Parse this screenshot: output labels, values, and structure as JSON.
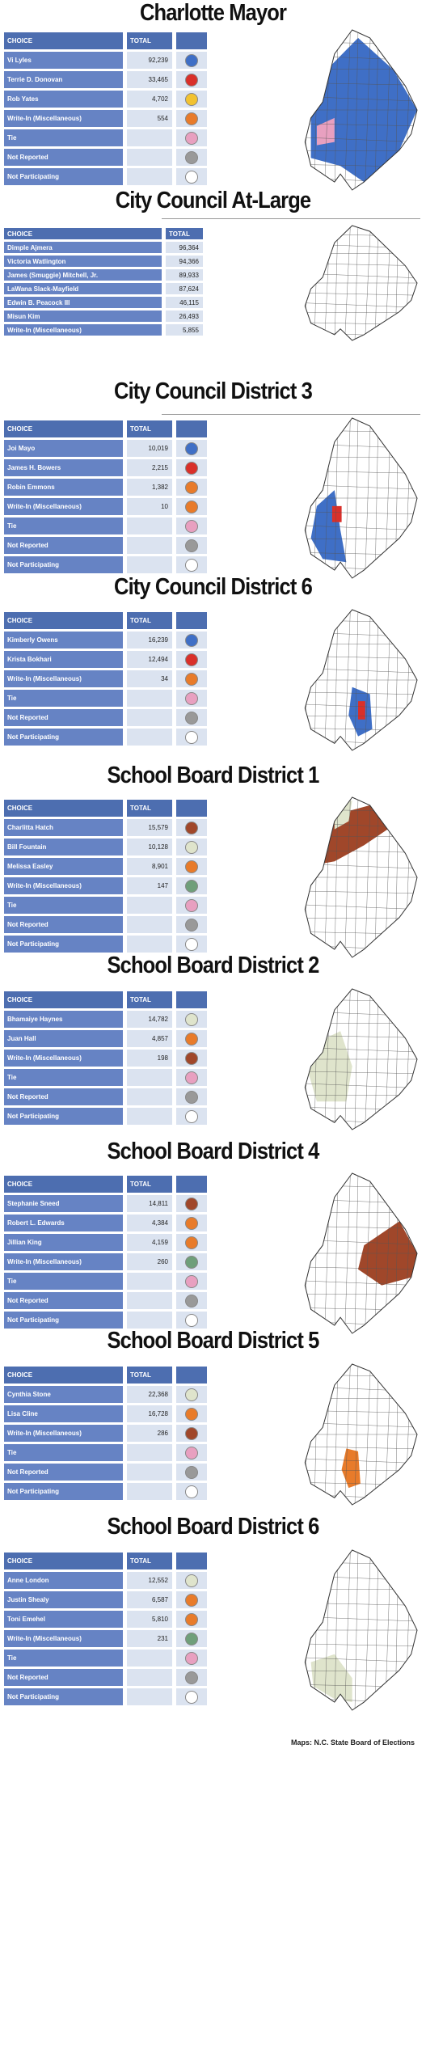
{
  "sections": [
    {
      "title": "Charlotte Mayor",
      "header": [
        "CHOICE",
        "TOTAL"
      ],
      "rows": [
        {
          "choice": "Vi Lyles",
          "total": "92,239",
          "color": "#3f6fc6"
        },
        {
          "choice": "Terrie D. Donovan",
          "total": "33,465",
          "color": "#d9302a"
        },
        {
          "choice": "Rob Yates",
          "total": "4,702",
          "color": "#f2c230"
        },
        {
          "choice": "Write-In (Miscellaneous)",
          "total": "554",
          "color": "#e87b2a"
        },
        {
          "choice": "Tie",
          "color": "#e8a0c0"
        },
        {
          "choice": "Not Reported",
          "color": "#999999"
        },
        {
          "choice": "Not Participating",
          "color": "#ffffff"
        }
      ]
    },
    {
      "title": "City Council At-Large",
      "header": [
        "CHOICE",
        "TOTAL"
      ],
      "rows": [
        {
          "choice": "Dimple Ajmera",
          "total": "96,364"
        },
        {
          "choice": "Victoria Watlington",
          "total": "94,366"
        },
        {
          "choice": "James (Smuggie) Mitchell, Jr.",
          "total": "89,933"
        },
        {
          "choice": "LaWana Slack-Mayfield",
          "total": "87,624"
        },
        {
          "choice": "Edwin B. Peacock III",
          "total": "46,115"
        },
        {
          "choice": "Misun Kim",
          "total": "26,493"
        },
        {
          "choice": "Write-In (Miscellaneous)",
          "total": "5,855"
        }
      ]
    },
    {
      "title": "City Council District 3",
      "header": [
        "CHOICE",
        "TOTAL"
      ],
      "rows": [
        {
          "choice": "Joi Mayo",
          "total": "10,019",
          "color": "#3f6fc6"
        },
        {
          "choice": "James H. Bowers",
          "total": "2,215",
          "color": "#d9302a"
        },
        {
          "choice": "Robin Emmons",
          "total": "1,382",
          "color": "#e87b2a"
        },
        {
          "choice": "Write-In (Miscellaneous)",
          "total": "10",
          "color": "#e87b2a"
        },
        {
          "choice": "Tie",
          "color": "#e8a0c0"
        },
        {
          "choice": "Not Reported",
          "color": "#999999"
        },
        {
          "choice": "Not Participating",
          "color": "#ffffff"
        }
      ]
    },
    {
      "title": "City Council District 6",
      "header": [
        "CHOICE",
        "TOTAL"
      ],
      "rows": [
        {
          "choice": "Kimberly Owens",
          "total": "16,239",
          "color": "#3f6fc6"
        },
        {
          "choice": "Krista Bokhari",
          "total": "12,494",
          "color": "#d9302a"
        },
        {
          "choice": "Write-In (Miscellaneous)",
          "total": "34",
          "color": "#e87b2a"
        },
        {
          "choice": "Tie",
          "color": "#e8a0c0"
        },
        {
          "choice": "Not Reported",
          "color": "#999999"
        },
        {
          "choice": "Not Participating",
          "color": "#ffffff"
        }
      ]
    },
    {
      "title": "School Board District 1",
      "header": [
        "CHOICE",
        "TOTAL"
      ],
      "rows": [
        {
          "choice": "Charlitta Hatch",
          "total": "15,579",
          "color": "#a0472a"
        },
        {
          "choice": "Bill Fountain",
          "total": "10,128",
          "color": "#dfe4cc"
        },
        {
          "choice": "Melissa Easley",
          "total": "8,901",
          "color": "#e87b2a"
        },
        {
          "choice": "Write-In (Miscellaneous)",
          "total": "147",
          "color": "#6f9f7a"
        },
        {
          "choice": "Tie",
          "color": "#e8a0c0"
        },
        {
          "choice": "Not Reported",
          "color": "#999999"
        },
        {
          "choice": "Not Participating",
          "color": "#ffffff"
        }
      ]
    },
    {
      "title": "School Board District 2",
      "header": [
        "CHOICE",
        "TOTAL"
      ],
      "rows": [
        {
          "choice": "Bhamaiye Haynes",
          "total": "14,782",
          "color": "#dfe4cc"
        },
        {
          "choice": "Juan Hall",
          "total": "4,857",
          "color": "#e87b2a"
        },
        {
          "choice": "Write-In (Miscellaneous)",
          "total": "198",
          "color": "#a0472a"
        },
        {
          "choice": "Tie",
          "color": "#e8a0c0"
        },
        {
          "choice": "Not Reported",
          "color": "#999999"
        },
        {
          "choice": "Not Participating",
          "color": "#ffffff"
        }
      ]
    },
    {
      "title": "School Board District 4",
      "header": [
        "CHOICE",
        "TOTAL"
      ],
      "rows": [
        {
          "choice": "Stephanie Sneed",
          "total": "14,811",
          "color": "#a0472a"
        },
        {
          "choice": "Robert L. Edwards",
          "total": "4,384",
          "color": "#e87b2a"
        },
        {
          "choice": "Jillian King",
          "total": "4,159",
          "color": "#e87b2a"
        },
        {
          "choice": "Write-In (Miscellaneous)",
          "total": "260",
          "color": "#6f9f7a"
        },
        {
          "choice": "Tie",
          "color": "#e8a0c0"
        },
        {
          "choice": "Not Reported",
          "color": "#999999"
        },
        {
          "choice": "Not Participating",
          "color": "#ffffff"
        }
      ]
    },
    {
      "title": "School Board District 5",
      "header": [
        "CHOICE",
        "TOTAL"
      ],
      "rows": [
        {
          "choice": "Cynthia Stone",
          "total": "22,368",
          "color": "#dfe4cc"
        },
        {
          "choice": "Lisa Cline",
          "total": "16,728",
          "color": "#e87b2a"
        },
        {
          "choice": "Write-In (Miscellaneous)",
          "total": "286",
          "color": "#a0472a"
        },
        {
          "choice": "Tie",
          "color": "#e8a0c0"
        },
        {
          "choice": "Not Reported",
          "color": "#999999"
        },
        {
          "choice": "Not Participating",
          "color": "#ffffff"
        }
      ]
    },
    {
      "title": "School Board District 6",
      "header": [
        "CHOICE",
        "TOTAL"
      ],
      "rows": [
        {
          "choice": "Anne London",
          "total": "12,552",
          "color": "#dfe4cc"
        },
        {
          "choice": "Justin Shealy",
          "total": "6,587",
          "color": "#e87b2a"
        },
        {
          "choice": "Toni Emehel",
          "total": "5,810",
          "color": "#e87b2a"
        },
        {
          "choice": "Write-In (Miscellaneous)",
          "total": "231",
          "color": "#6f9f7a"
        },
        {
          "choice": "Tie",
          "color": "#e8a0c0"
        },
        {
          "choice": "Not Reported",
          "color": "#999999"
        },
        {
          "choice": "Not Participating",
          "color": "#ffffff"
        }
      ]
    }
  ],
  "footer": "Maps: N.C. State Board of Elections"
}
